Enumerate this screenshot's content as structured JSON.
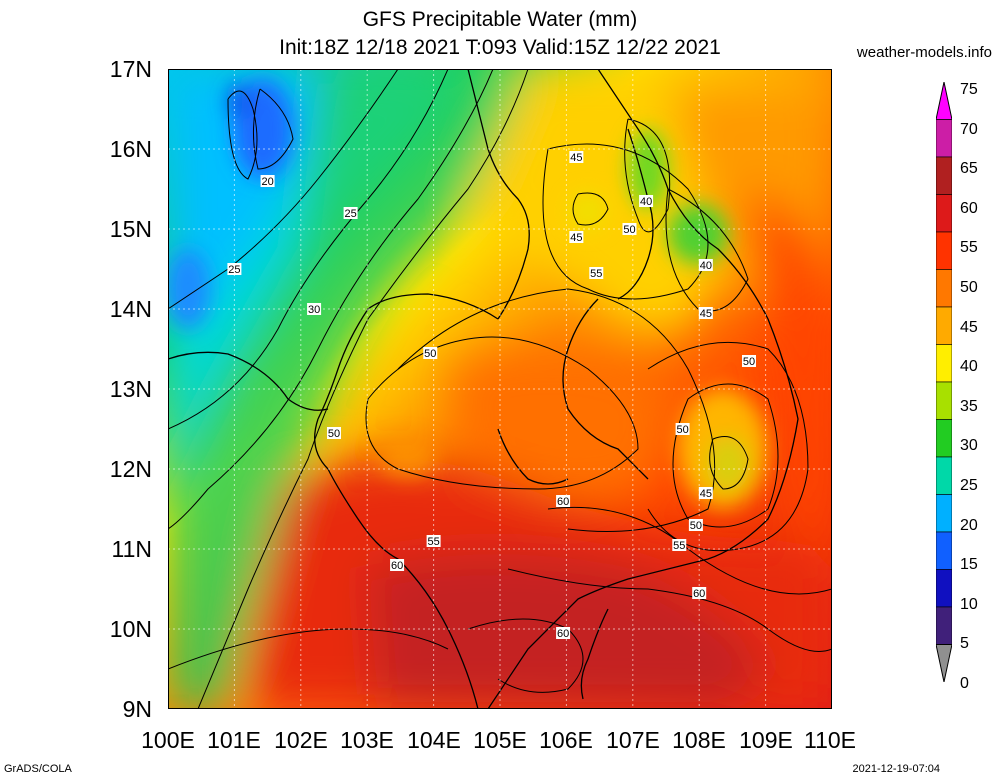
{
  "header": {
    "title": "GFS Precipitable Water (mm)",
    "subtitle": "Init:18Z 12/18 2021 T:093 Valid:15Z 12/22 2021",
    "site": "weather-models.info"
  },
  "footer": {
    "left": "GrADS/COLA",
    "right": "2021-12-19-07:04"
  },
  "axes": {
    "lat_labels": [
      "17N",
      "16N",
      "15N",
      "14N",
      "13N",
      "12N",
      "11N",
      "10N",
      "9N"
    ],
    "lon_labels": [
      "100E",
      "101E",
      "102E",
      "103E",
      "104E",
      "105E",
      "106E",
      "107E",
      "108E",
      "109E",
      "110E"
    ],
    "lat_range": [
      9,
      17
    ],
    "lon_range": [
      100,
      110
    ]
  },
  "colorbar": {
    "labels": [
      "75",
      "70",
      "65",
      "60",
      "55",
      "50",
      "45",
      "40",
      "35",
      "30",
      "25",
      "20",
      "15",
      "10",
      "5",
      "0"
    ],
    "colors": [
      "#ff00ff",
      "#cc1ea6",
      "#b02020",
      "#dd1a1a",
      "#ff3300",
      "#ff7800",
      "#ffaa00",
      "#ffee00",
      "#a8e000",
      "#22cc22",
      "#00d8a8",
      "#00b0ff",
      "#1060ff",
      "#1010c0",
      "#40207a",
      "#909090"
    ]
  },
  "contour_labels": [
    {
      "text": "20",
      "lon": 101.5,
      "lat": 15.6
    },
    {
      "text": "25",
      "lon": 102.75,
      "lat": 15.2
    },
    {
      "text": "25",
      "lon": 101.0,
      "lat": 14.5
    },
    {
      "text": "30",
      "lon": 102.2,
      "lat": 14.0
    },
    {
      "text": "50",
      "lon": 103.95,
      "lat": 13.45
    },
    {
      "text": "50",
      "lon": 102.5,
      "lat": 12.45
    },
    {
      "text": "55",
      "lon": 104.0,
      "lat": 11.1
    },
    {
      "text": "60",
      "lon": 103.45,
      "lat": 10.8
    },
    {
      "text": "60",
      "lon": 105.95,
      "lat": 11.6
    },
    {
      "text": "60",
      "lon": 105.95,
      "lat": 9.95
    },
    {
      "text": "45",
      "lon": 106.15,
      "lat": 15.9
    },
    {
      "text": "45",
      "lon": 106.15,
      "lat": 14.9
    },
    {
      "text": "40",
      "lon": 107.2,
      "lat": 15.35
    },
    {
      "text": "50",
      "lon": 106.95,
      "lat": 15.0
    },
    {
      "text": "55",
      "lon": 106.45,
      "lat": 14.45
    },
    {
      "text": "40",
      "lon": 108.1,
      "lat": 14.55
    },
    {
      "text": "45",
      "lon": 108.1,
      "lat": 13.95
    },
    {
      "text": "50",
      "lon": 108.75,
      "lat": 13.35
    },
    {
      "text": "50",
      "lon": 107.75,
      "lat": 12.5
    },
    {
      "text": "45",
      "lon": 108.1,
      "lat": 11.7
    },
    {
      "text": "50",
      "lon": 107.95,
      "lat": 11.3
    },
    {
      "text": "55",
      "lon": 107.7,
      "lat": 11.05
    },
    {
      "text": "60",
      "lon": 108.0,
      "lat": 10.45
    }
  ]
}
